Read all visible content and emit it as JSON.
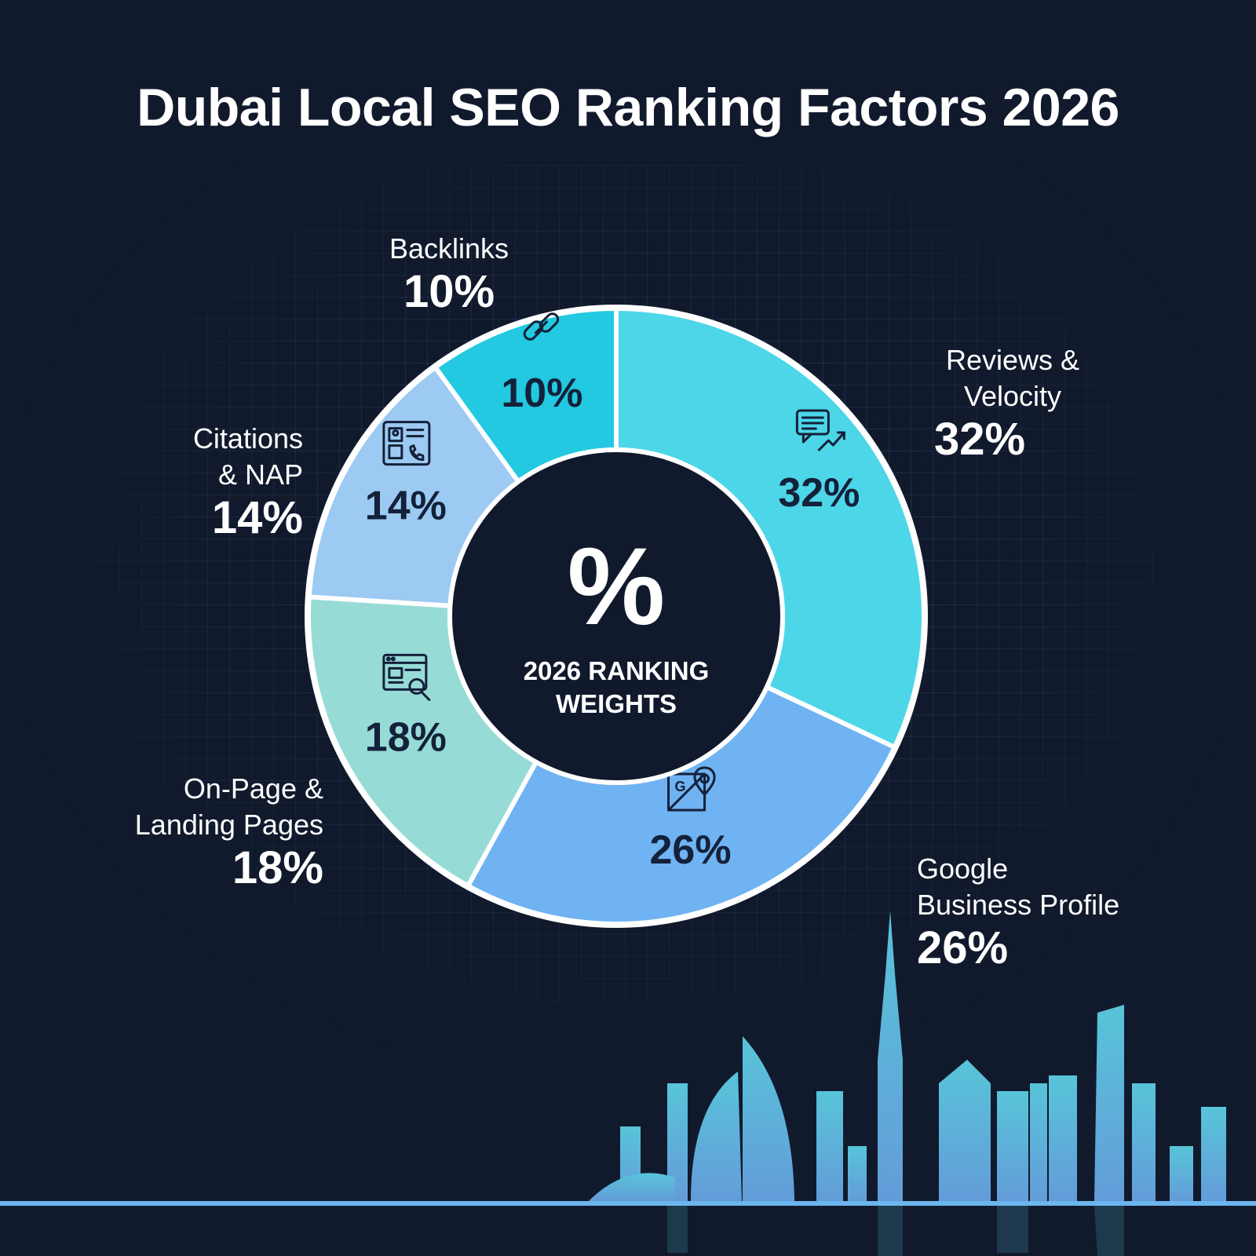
{
  "title": "Dubai Local SEO Ranking Factors 2026",
  "center": {
    "symbol": "%",
    "caption_line1": "2026 RANKING",
    "caption_line2": "WEIGHTS"
  },
  "colors": {
    "background": "#111a2c",
    "center_fill": "#111a2c",
    "slice_text": "#14213a",
    "separator": "#ffffff"
  },
  "chart_data": {
    "type": "pie",
    "title": "Dubai Local SEO Ranking Factors 2026",
    "donut": true,
    "categories": [
      "Reviews & Velocity",
      "Google Business Profile",
      "On-Page & Landing Pages",
      "Citations & NAP",
      "Backlinks"
    ],
    "values": [
      32,
      26,
      18,
      14,
      10
    ],
    "unit": "%",
    "slices": [
      {
        "label": "Reviews & Velocity",
        "display_name": "Reviews &\nVelocity",
        "value": 32,
        "value_label": "32%",
        "color": "#4dd6e8",
        "icon": "chat-growth-icon"
      },
      {
        "label": "Google Business Profile",
        "display_name": "Google\nBusiness Profile",
        "value": 26,
        "value_label": "26%",
        "color": "#6fb3f2",
        "icon": "map-pin-icon"
      },
      {
        "label": "On-Page & Landing Pages",
        "display_name": "On-Page &\nLanding Pages",
        "value": 18,
        "value_label": "18%",
        "color": "#97dbd6",
        "icon": "browser-search-icon"
      },
      {
        "label": "Citations & NAP",
        "display_name": "Citations\n& NAP",
        "value": 14,
        "value_label": "14%",
        "color": "#9ccaf2",
        "icon": "contact-card-icon"
      },
      {
        "label": "Backlinks",
        "display_name": "Backlinks",
        "value": 10,
        "value_label": "10%",
        "color": "#22c9e0",
        "icon": "link-icon"
      }
    ],
    "legend": "callouts-around-chart"
  }
}
